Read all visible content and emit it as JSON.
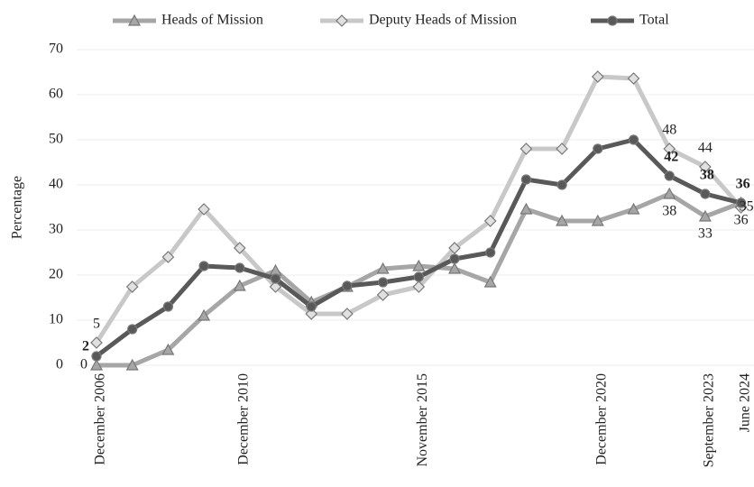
{
  "chart_data": {
    "type": "line",
    "y_label": "Percentage",
    "categories": [
      "December 2006",
      null,
      null,
      null,
      "December 2010",
      null,
      null,
      null,
      null,
      "November 2015",
      null,
      null,
      null,
      null,
      "December 2020",
      null,
      null,
      "September 2023",
      "June 2024"
    ],
    "series": [
      {
        "name": "Heads of Mission",
        "color": "#a6a6a6",
        "marker": "triangle",
        "values": [
          0,
          0,
          3.4,
          11,
          17.6,
          21,
          14,
          17.4,
          21.4,
          22,
          21.4,
          18.4,
          34.6,
          32,
          32,
          34.6,
          38,
          33,
          36
        ],
        "value_labels": [
          "0",
          null,
          null,
          null,
          null,
          null,
          null,
          null,
          null,
          null,
          null,
          null,
          null,
          null,
          null,
          null,
          "38",
          "33",
          "36"
        ]
      },
      {
        "name": "Deputy Heads of Mission",
        "color": "#c8c8c8",
        "marker": "diamond",
        "values": [
          5,
          17.4,
          24,
          34.6,
          26,
          17.4,
          11.4,
          11.4,
          15.6,
          17.4,
          26,
          32,
          48,
          48,
          64,
          63.6,
          48,
          44,
          35
        ],
        "value_labels": [
          "5",
          null,
          null,
          null,
          null,
          null,
          null,
          null,
          null,
          null,
          null,
          null,
          null,
          null,
          null,
          null,
          "48",
          "44",
          "35"
        ]
      },
      {
        "name": "Total",
        "color": "#595959",
        "marker": "circle",
        "values": [
          2,
          8,
          13,
          22,
          21.6,
          19.2,
          13,
          17.6,
          18.4,
          19.6,
          23.6,
          25,
          41.2,
          40,
          48,
          50,
          42,
          38,
          36
        ],
        "value_labels": [
          "2",
          null,
          null,
          null,
          null,
          null,
          null,
          null,
          null,
          null,
          null,
          null,
          null,
          null,
          null,
          null,
          "42",
          "38",
          "36"
        ]
      }
    ],
    "ylim": [
      0,
      70
    ],
    "yticks": [
      0,
      10,
      20,
      30,
      40,
      50,
      60,
      70
    ],
    "grid": true,
    "legend": "top"
  }
}
